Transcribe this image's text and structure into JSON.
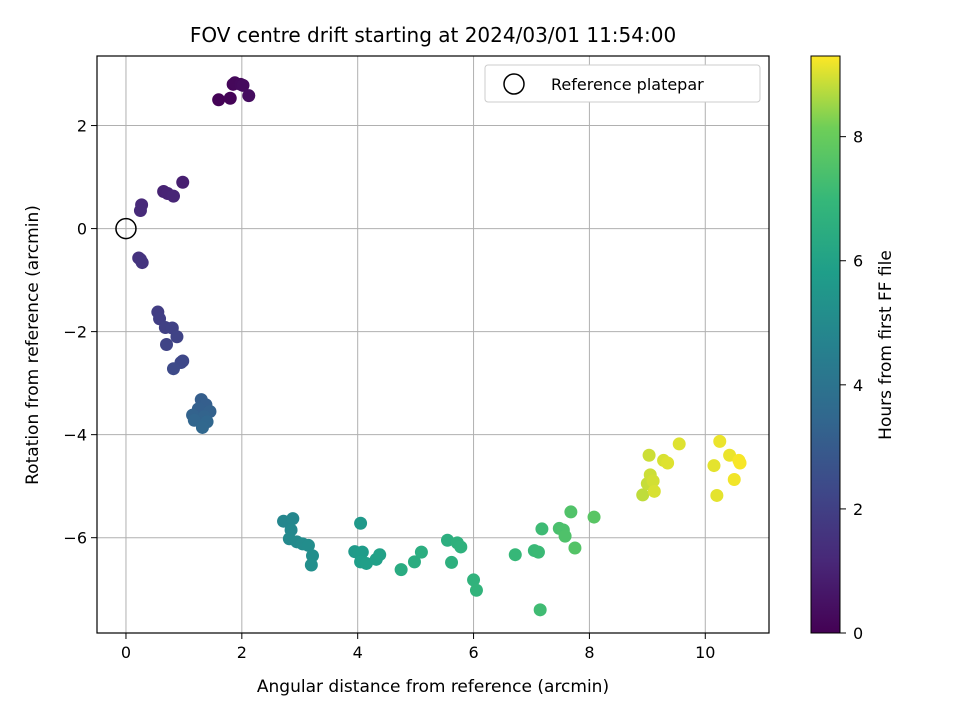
{
  "chart_data": {
    "type": "scatter",
    "title": "FOV centre drift starting at 2024/03/01 11:54:00",
    "xlabel": "Angular distance from reference (arcmin)",
    "ylabel": "Rotation from reference (arcmin)",
    "colorbar_label": "Hours from first FF file",
    "xlim": [
      -0.5,
      11.1
    ],
    "ylim": [
      -7.85,
      3.35
    ],
    "xticks": [
      0,
      2,
      4,
      6,
      8,
      10
    ],
    "yticks": [
      -6,
      -4,
      -2,
      0,
      2
    ],
    "colorbar_range": [
      0,
      9.3
    ],
    "colorbar_ticks": [
      0,
      2,
      4,
      6,
      8
    ],
    "colormap": "viridis",
    "grid": true,
    "legend": {
      "placement": "top-right",
      "entries": [
        "Reference platepar"
      ]
    },
    "reference_point": {
      "x": 0,
      "y": 0,
      "style": "hollow-circle"
    },
    "points": [
      {
        "x": 1.6,
        "y": 2.5,
        "c": 0.05
      },
      {
        "x": 1.8,
        "y": 2.53,
        "c": 0.1
      },
      {
        "x": 1.85,
        "y": 2.8,
        "c": 0.15
      },
      {
        "x": 1.88,
        "y": 2.83,
        "c": 0.2
      },
      {
        "x": 1.98,
        "y": 2.8,
        "c": 0.25
      },
      {
        "x": 2.02,
        "y": 2.78,
        "c": 0.3
      },
      {
        "x": 2.12,
        "y": 2.58,
        "c": 0.35
      },
      {
        "x": 0.98,
        "y": 0.9,
        "c": 0.9
      },
      {
        "x": 0.65,
        "y": 0.72,
        "c": 1.0
      },
      {
        "x": 0.72,
        "y": 0.68,
        "c": 1.05
      },
      {
        "x": 0.82,
        "y": 0.63,
        "c": 1.1
      },
      {
        "x": 0.27,
        "y": 0.46,
        "c": 1.2
      },
      {
        "x": 0.25,
        "y": 0.35,
        "c": 1.25
      },
      {
        "x": 0.22,
        "y": -0.57,
        "c": 1.5
      },
      {
        "x": 0.25,
        "y": -0.6,
        "c": 1.55
      },
      {
        "x": 0.28,
        "y": -0.66,
        "c": 1.6
      },
      {
        "x": 0.55,
        "y": -1.62,
        "c": 1.9
      },
      {
        "x": 0.58,
        "y": -1.75,
        "c": 1.95
      },
      {
        "x": 0.68,
        "y": -1.92,
        "c": 2.0
      },
      {
        "x": 0.8,
        "y": -1.93,
        "c": 2.05
      },
      {
        "x": 0.88,
        "y": -2.1,
        "c": 2.1
      },
      {
        "x": 0.7,
        "y": -2.25,
        "c": 2.15
      },
      {
        "x": 0.98,
        "y": -2.57,
        "c": 2.25
      },
      {
        "x": 0.95,
        "y": -2.6,
        "c": 2.3
      },
      {
        "x": 0.82,
        "y": -2.72,
        "c": 2.35
      },
      {
        "x": 1.3,
        "y": -3.32,
        "c": 3.1
      },
      {
        "x": 1.38,
        "y": -3.42,
        "c": 3.15
      },
      {
        "x": 1.25,
        "y": -3.5,
        "c": 3.2
      },
      {
        "x": 1.45,
        "y": -3.55,
        "c": 3.25
      },
      {
        "x": 1.15,
        "y": -3.62,
        "c": 3.3
      },
      {
        "x": 1.35,
        "y": -3.65,
        "c": 3.35
      },
      {
        "x": 1.18,
        "y": -3.72,
        "c": 3.4
      },
      {
        "x": 1.4,
        "y": -3.75,
        "c": 3.45
      },
      {
        "x": 1.32,
        "y": -3.86,
        "c": 3.5
      },
      {
        "x": 2.72,
        "y": -5.68,
        "c": 4.8
      },
      {
        "x": 2.88,
        "y": -5.63,
        "c": 4.85
      },
      {
        "x": 2.85,
        "y": -5.85,
        "c": 4.9
      },
      {
        "x": 2.82,
        "y": -6.02,
        "c": 4.95
      },
      {
        "x": 2.95,
        "y": -6.08,
        "c": 5.0
      },
      {
        "x": 3.05,
        "y": -6.12,
        "c": 5.05
      },
      {
        "x": 3.15,
        "y": -6.15,
        "c": 5.1
      },
      {
        "x": 3.22,
        "y": -6.35,
        "c": 5.15
      },
      {
        "x": 3.2,
        "y": -6.53,
        "c": 5.2
      },
      {
        "x": 4.05,
        "y": -5.72,
        "c": 5.6
      },
      {
        "x": 3.95,
        "y": -6.27,
        "c": 5.65
      },
      {
        "x": 4.02,
        "y": -6.3,
        "c": 5.7
      },
      {
        "x": 4.08,
        "y": -6.28,
        "c": 5.75
      },
      {
        "x": 4.05,
        "y": -6.47,
        "c": 5.8
      },
      {
        "x": 4.15,
        "y": -6.5,
        "c": 5.85
      },
      {
        "x": 4.32,
        "y": -6.42,
        "c": 5.9
      },
      {
        "x": 4.38,
        "y": -6.33,
        "c": 5.95
      },
      {
        "x": 4.75,
        "y": -6.62,
        "c": 6.4
      },
      {
        "x": 4.98,
        "y": -6.47,
        "c": 6.45
      },
      {
        "x": 5.1,
        "y": -6.28,
        "c": 6.5
      },
      {
        "x": 5.55,
        "y": -6.05,
        "c": 6.55
      },
      {
        "x": 5.62,
        "y": -6.48,
        "c": 6.6
      },
      {
        "x": 5.72,
        "y": -6.1,
        "c": 6.65
      },
      {
        "x": 5.78,
        "y": -6.18,
        "c": 6.7
      },
      {
        "x": 6.0,
        "y": -6.82,
        "c": 6.75
      },
      {
        "x": 6.05,
        "y": -7.02,
        "c": 6.8
      },
      {
        "x": 6.72,
        "y": -6.33,
        "c": 7.0
      },
      {
        "x": 7.05,
        "y": -6.25,
        "c": 7.05
      },
      {
        "x": 7.12,
        "y": -6.28,
        "c": 7.1
      },
      {
        "x": 7.18,
        "y": -5.83,
        "c": 7.15
      },
      {
        "x": 7.15,
        "y": -7.4,
        "c": 7.2
      },
      {
        "x": 7.48,
        "y": -5.82,
        "c": 7.4
      },
      {
        "x": 7.55,
        "y": -5.85,
        "c": 7.45
      },
      {
        "x": 7.58,
        "y": -5.97,
        "c": 7.5
      },
      {
        "x": 7.68,
        "y": -5.5,
        "c": 7.55
      },
      {
        "x": 7.75,
        "y": -6.2,
        "c": 7.6
      },
      {
        "x": 8.08,
        "y": -5.6,
        "c": 7.7
      },
      {
        "x": 8.92,
        "y": -5.17,
        "c": 8.8
      },
      {
        "x": 9.0,
        "y": -4.95,
        "c": 8.85
      },
      {
        "x": 9.05,
        "y": -4.78,
        "c": 8.9
      },
      {
        "x": 9.03,
        "y": -4.4,
        "c": 8.9
      },
      {
        "x": 9.1,
        "y": -4.9,
        "c": 8.95
      },
      {
        "x": 9.12,
        "y": -5.1,
        "c": 9.0
      },
      {
        "x": 9.28,
        "y": -4.5,
        "c": 9.0
      },
      {
        "x": 9.35,
        "y": -4.55,
        "c": 9.05
      },
      {
        "x": 9.55,
        "y": -4.18,
        "c": 9.05
      },
      {
        "x": 10.15,
        "y": -4.6,
        "c": 9.1
      },
      {
        "x": 10.2,
        "y": -5.18,
        "c": 9.1
      },
      {
        "x": 10.25,
        "y": -4.13,
        "c": 9.15
      },
      {
        "x": 10.42,
        "y": -4.4,
        "c": 9.15
      },
      {
        "x": 10.5,
        "y": -4.87,
        "c": 9.2
      },
      {
        "x": 10.58,
        "y": -4.5,
        "c": 9.25
      },
      {
        "x": 10.6,
        "y": -4.55,
        "c": 9.25
      }
    ]
  }
}
